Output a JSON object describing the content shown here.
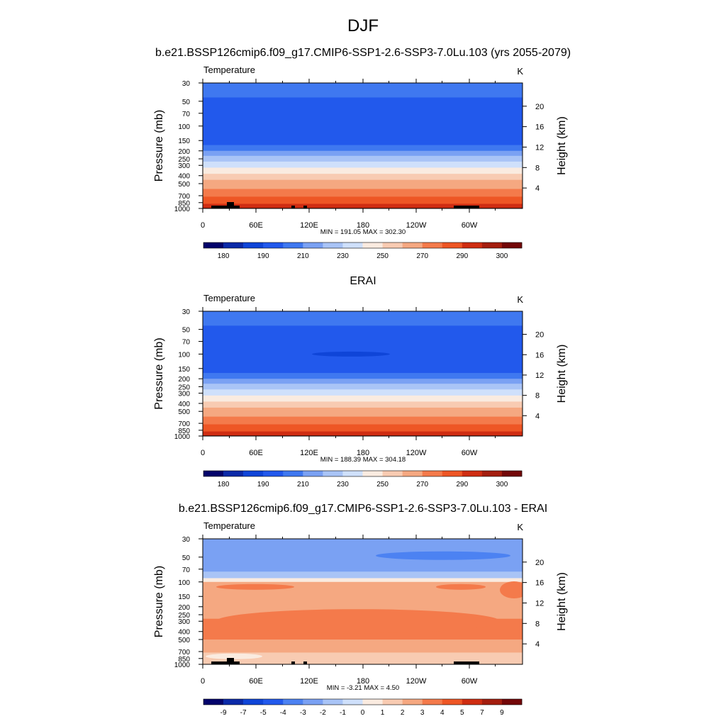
{
  "figure_title": "DJF",
  "colors": {
    "abs_scale": [
      "#03036b",
      "#0b2aa8",
      "#0f45d8",
      "#2259ec",
      "#3f78f0",
      "#7aa1f3",
      "#a9c4f6",
      "#cfe0fb",
      "#faebe0",
      "#f8cbb2",
      "#f5a881",
      "#f47a4b",
      "#ee5625",
      "#cf2d12",
      "#a41e0f",
      "#730708"
    ],
    "diff_scale": [
      "#03036b",
      "#0b2aa8",
      "#0f45d8",
      "#2259ec",
      "#4c82f2",
      "#7aa1f3",
      "#a9c4f6",
      "#cfe0fb",
      "#faebe0",
      "#f8cbb2",
      "#f5a881",
      "#f47a4b",
      "#ee5625",
      "#cf2d12",
      "#a41e0f",
      "#730708"
    ],
    "topography": "#000000"
  },
  "panels": [
    {
      "title": "b.e21.BSSP126cmip6.f09_g17.CMIP6-SSP1-2.6-SSP3-7.0Lu.103 (yrs 2055-2079)",
      "variable": "Temperature",
      "units": "K",
      "ylabel_left": "Pressure (mb)",
      "ylabel_right": "Height (km)",
      "stats": "MIN = 191.05  MAX = 302.30",
      "colorbar_labels": [
        "180",
        "190",
        "210",
        "230",
        "250",
        "270",
        "290",
        "300"
      ]
    },
    {
      "title": "ERAI",
      "variable": "Temperature",
      "units": "K",
      "ylabel_left": "Pressure (mb)",
      "ylabel_right": "Height (km)",
      "stats": "MIN = 188.39  MAX = 304.18",
      "colorbar_labels": [
        "180",
        "190",
        "210",
        "230",
        "250",
        "270",
        "290",
        "300"
      ]
    },
    {
      "title": "b.e21.BSSP126cmip6.f09_g17.CMIP6-SSP1-2.6-SSP3-7.0Lu.103 - ERAI",
      "variable": "Temperature",
      "units": "K",
      "ylabel_left": "Pressure (mb)",
      "ylabel_right": "Height (km)",
      "stats": "MIN =  -3.21  MAX =   4.50",
      "colorbar_labels": [
        "-9",
        "-7",
        "-5",
        "-4",
        "-3",
        "-2",
        "-1",
        "0",
        "1",
        "2",
        "3",
        "4",
        "5",
        "7",
        "9"
      ]
    }
  ],
  "chart_data": [
    {
      "type": "heatmap",
      "title": "b.e21.BSSP126cmip6.f09_g17.CMIP6-SSP1-2.6-SSP3-7.0Lu.103 (yrs 2055-2079)",
      "x_ticklabels": [
        "0",
        "60E",
        "120E",
        "180",
        "120W",
        "60W"
      ],
      "y_ticklabels": [
        "30",
        "50",
        "70",
        "100",
        "150",
        "200",
        "250",
        "300",
        "400",
        "500",
        "700",
        "850",
        "1000"
      ],
      "y2_ticklabels": [
        "20",
        "16",
        "12",
        "8",
        "4"
      ],
      "profile": [
        {
          "p": 30,
          "band": 4
        },
        {
          "p": 45,
          "band": 3
        },
        {
          "p": 150,
          "band": 3
        },
        {
          "p": 170,
          "band": 4
        },
        {
          "p": 200,
          "band": 5
        },
        {
          "p": 230,
          "band": 6
        },
        {
          "p": 270,
          "band": 7
        },
        {
          "p": 320,
          "band": 8
        },
        {
          "p": 380,
          "band": 9
        },
        {
          "p": 450,
          "band": 10
        },
        {
          "p": 580,
          "band": 11
        },
        {
          "p": 720,
          "band": 12
        },
        {
          "p": 880,
          "band": 13
        },
        {
          "p": 980,
          "band": 14
        },
        {
          "p": 1000,
          "band": 14
        }
      ],
      "colorbar": "abs",
      "topography": true
    },
    {
      "type": "heatmap",
      "title": "ERAI",
      "x_ticklabels": [
        "0",
        "60E",
        "120E",
        "180",
        "120W",
        "60W"
      ],
      "y_ticklabels": [
        "30",
        "50",
        "70",
        "100",
        "150",
        "200",
        "250",
        "300",
        "400",
        "500",
        "700",
        "850",
        "1000"
      ],
      "y2_ticklabels": [
        "20",
        "16",
        "12",
        "8",
        "4"
      ],
      "profile": [
        {
          "p": 30,
          "band": 4
        },
        {
          "p": 45,
          "band": 3
        },
        {
          "p": 150,
          "band": 3
        },
        {
          "p": 170,
          "band": 4
        },
        {
          "p": 200,
          "band": 5
        },
        {
          "p": 230,
          "band": 6
        },
        {
          "p": 270,
          "band": 7
        },
        {
          "p": 320,
          "band": 8
        },
        {
          "p": 380,
          "band": 9
        },
        {
          "p": 450,
          "band": 10
        },
        {
          "p": 580,
          "band": 11
        },
        {
          "p": 720,
          "band": 12
        },
        {
          "p": 880,
          "band": 13
        },
        {
          "p": 980,
          "band": 14
        },
        {
          "p": 1000,
          "band": 14
        }
      ],
      "colorbar": "abs",
      "topography": false
    },
    {
      "type": "heatmap",
      "title": "b.e21.BSSP126cmip6.f09_g17.CMIP6-SSP1-2.6-SSP3-7.0Lu.103 - ERAI",
      "x_ticklabels": [
        "0",
        "60E",
        "120E",
        "180",
        "120W",
        "60W"
      ],
      "y_ticklabels": [
        "30",
        "50",
        "70",
        "100",
        "150",
        "200",
        "250",
        "300",
        "400",
        "500",
        "700",
        "850",
        "1000"
      ],
      "y2_ticklabels": [
        "20",
        "16",
        "12",
        "8",
        "4"
      ],
      "profile": [
        {
          "p": 30,
          "band": 5
        },
        {
          "p": 75,
          "band": 6
        },
        {
          "p": 90,
          "band": 8
        },
        {
          "p": 100,
          "band": 10
        },
        {
          "p": 130,
          "band": 10
        },
        {
          "p": 280,
          "band": 11
        },
        {
          "p": 500,
          "band": 10
        },
        {
          "p": 720,
          "band": 9
        },
        {
          "p": 1000,
          "band": 9
        }
      ],
      "colorbar": "diff",
      "topography": true
    }
  ]
}
